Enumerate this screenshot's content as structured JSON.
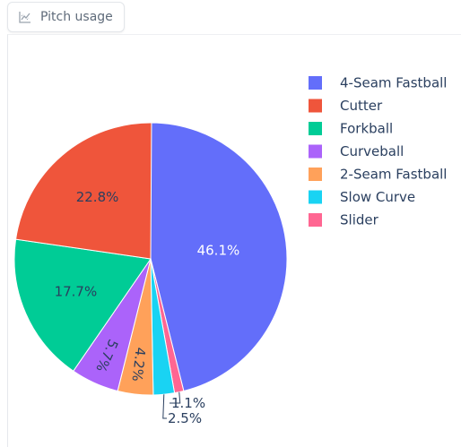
{
  "tab": {
    "label": "Pitch usage",
    "icon": "line-chart-icon"
  },
  "chart_data": {
    "type": "pie",
    "direction": "clockwise",
    "start_angle_deg": 90,
    "slices": [
      {
        "label": "4-Seam Fastball",
        "percent": 46.1,
        "color": "#636efa",
        "label_color": "#ffffff",
        "label_position": "inside"
      },
      {
        "label": "Slider",
        "percent": 1.1,
        "color": "#ff6692",
        "label_color": "#2a3f5f",
        "label_position": "outside"
      },
      {
        "label": "Slow Curve",
        "percent": 2.5,
        "color": "#19d3f3",
        "label_color": "#2a3f5f",
        "label_position": "outside"
      },
      {
        "label": "2-Seam Fastball",
        "percent": 4.2,
        "color": "#ffa15a",
        "label_color": "#2a3f5f",
        "label_position": "inside-rotated"
      },
      {
        "label": "Curveball",
        "percent": 5.7,
        "color": "#ab63fa",
        "label_color": "#2a3f5f",
        "label_position": "inside-rotated"
      },
      {
        "label": "Forkball",
        "percent": 17.7,
        "color": "#00cc96",
        "label_color": "#2a3f5f",
        "label_position": "inside"
      },
      {
        "label": "Cutter",
        "percent": 22.8,
        "color": "#ef553b",
        "label_color": "#2a3f5f",
        "label_position": "inside"
      }
    ],
    "legend": {
      "placement": "right",
      "entries": [
        {
          "label": "4-Seam Fastball",
          "color": "#636efa"
        },
        {
          "label": "Cutter",
          "color": "#ef553b"
        },
        {
          "label": "Forkball",
          "color": "#00cc96"
        },
        {
          "label": "Curveball",
          "color": "#ab63fa"
        },
        {
          "label": "2-Seam Fastball",
          "color": "#ffa15a"
        },
        {
          "label": "Slow Curve",
          "color": "#19d3f3"
        },
        {
          "label": "Slider",
          "color": "#ff6692"
        }
      ]
    }
  }
}
